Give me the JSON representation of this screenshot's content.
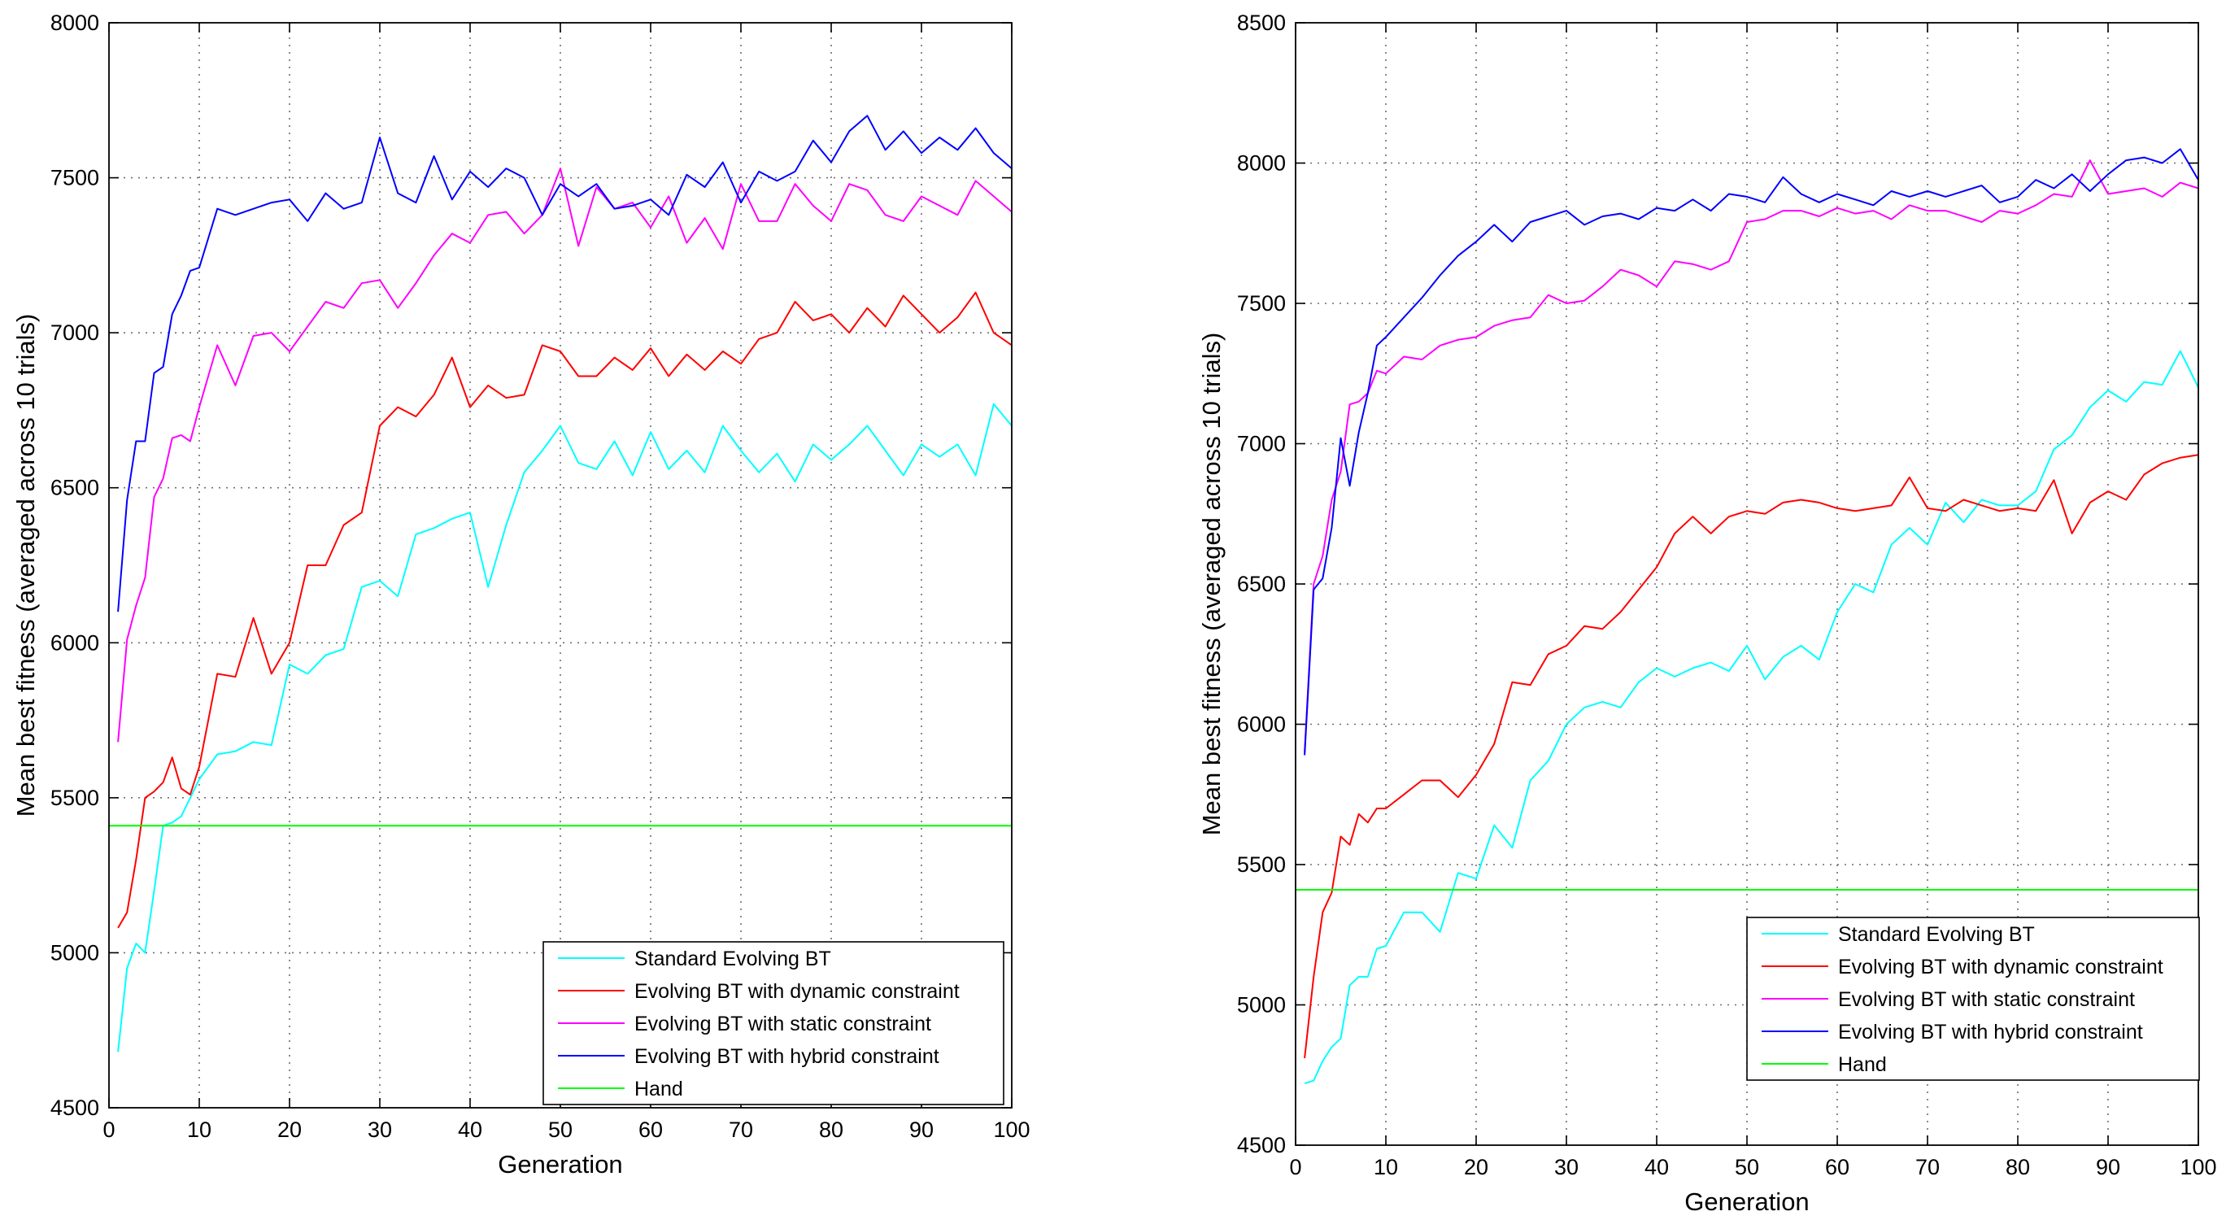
{
  "chart_data": [
    {
      "type": "line",
      "title": "",
      "xlabel": "Generation",
      "ylabel": "Mean best fitness (averaged across 10 trials)",
      "xlim": [
        0,
        100
      ],
      "ylim": [
        4500,
        8000
      ],
      "xticks": [
        0,
        10,
        20,
        30,
        40,
        50,
        60,
        70,
        80,
        90,
        100
      ],
      "yticks": [
        4500,
        5000,
        5500,
        6000,
        6500,
        7000,
        7500,
        8000
      ],
      "grid": true,
      "legend_position": "bottom-right",
      "series": [
        {
          "name": "Standard Evolving BT",
          "color": "#00ffff",
          "x": [
            1,
            2,
            3,
            4,
            5,
            6,
            7,
            8,
            9,
            10,
            12,
            14,
            16,
            18,
            20,
            22,
            24,
            26,
            28,
            30,
            32,
            34,
            36,
            38,
            40,
            42,
            44,
            46,
            48,
            50,
            52,
            54,
            56,
            58,
            60,
            62,
            64,
            66,
            68,
            70,
            72,
            74,
            76,
            78,
            80,
            82,
            84,
            86,
            88,
            90,
            92,
            94,
            96,
            98,
            100
          ],
          "y": [
            4680,
            4950,
            5030,
            5000,
            5200,
            5410,
            5420,
            5440,
            5500,
            5560,
            5640,
            5650,
            5680,
            5670,
            5930,
            5900,
            5960,
            5980,
            6180,
            6200,
            6150,
            6350,
            6370,
            6400,
            6420,
            6180,
            6380,
            6550,
            6620,
            6700,
            6580,
            6560,
            6650,
            6540,
            6680,
            6560,
            6620,
            6550,
            6700,
            6620,
            6550,
            6610,
            6520,
            6640,
            6590,
            6640,
            6700,
            6620,
            6540,
            6640,
            6600,
            6640,
            6540,
            6770,
            6700
          ]
        },
        {
          "name": "Evolving BT with dynamic constraint",
          "color": "#ff0000",
          "x": [
            1,
            2,
            3,
            4,
            5,
            6,
            7,
            8,
            9,
            10,
            12,
            14,
            16,
            18,
            20,
            22,
            24,
            26,
            28,
            30,
            32,
            34,
            36,
            38,
            40,
            42,
            44,
            46,
            48,
            50,
            52,
            54,
            56,
            58,
            60,
            62,
            64,
            66,
            68,
            70,
            72,
            74,
            76,
            78,
            80,
            82,
            84,
            86,
            88,
            90,
            92,
            94,
            96,
            98,
            100
          ],
          "y": [
            5080,
            5130,
            5300,
            5500,
            5520,
            5550,
            5630,
            5530,
            5510,
            5600,
            5900,
            5890,
            6080,
            5900,
            6000,
            6250,
            6250,
            6380,
            6420,
            6700,
            6760,
            6730,
            6800,
            6920,
            6760,
            6830,
            6790,
            6800,
            6960,
            6940,
            6860,
            6860,
            6920,
            6880,
            6950,
            6860,
            6930,
            6880,
            6940,
            6900,
            6980,
            7000,
            7100,
            7040,
            7060,
            7000,
            7080,
            7020,
            7120,
            7060,
            7000,
            7050,
            7130,
            7000,
            6960
          ]
        },
        {
          "name": "Evolving BT with static constraint",
          "color": "#ff00ff",
          "x": [
            1,
            2,
            3,
            4,
            5,
            6,
            7,
            8,
            9,
            10,
            12,
            14,
            16,
            18,
            20,
            22,
            24,
            26,
            28,
            30,
            32,
            34,
            36,
            38,
            40,
            42,
            44,
            46,
            48,
            50,
            52,
            54,
            56,
            58,
            60,
            62,
            64,
            66,
            68,
            70,
            72,
            74,
            76,
            78,
            80,
            82,
            84,
            86,
            88,
            90,
            92,
            94,
            96,
            98,
            100
          ],
          "y": [
            5680,
            6010,
            6120,
            6210,
            6470,
            6530,
            6660,
            6670,
            6650,
            6760,
            6960,
            6830,
            6990,
            7000,
            6940,
            7020,
            7100,
            7080,
            7160,
            7170,
            7080,
            7160,
            7250,
            7320,
            7290,
            7380,
            7390,
            7320,
            7380,
            7530,
            7280,
            7470,
            7400,
            7420,
            7340,
            7440,
            7290,
            7370,
            7270,
            7480,
            7360,
            7360,
            7480,
            7410,
            7360,
            7480,
            7460,
            7380,
            7360,
            7440,
            7410,
            7380,
            7490,
            7440,
            7390
          ]
        },
        {
          "name": "Evolving BT with hybrid constraint",
          "color": "#0000ff",
          "x": [
            1,
            2,
            3,
            4,
            5,
            6,
            7,
            8,
            9,
            10,
            12,
            14,
            16,
            18,
            20,
            22,
            24,
            26,
            28,
            30,
            32,
            34,
            36,
            38,
            40,
            42,
            44,
            46,
            48,
            50,
            52,
            54,
            56,
            58,
            60,
            62,
            64,
            66,
            68,
            70,
            72,
            74,
            76,
            78,
            80,
            82,
            84,
            86,
            88,
            90,
            92,
            94,
            96,
            98,
            100
          ],
          "y": [
            6100,
            6460,
            6650,
            6650,
            6870,
            6890,
            7060,
            7120,
            7200,
            7210,
            7400,
            7380,
            7400,
            7420,
            7430,
            7360,
            7450,
            7400,
            7420,
            7630,
            7450,
            7420,
            7570,
            7430,
            7520,
            7470,
            7530,
            7500,
            7380,
            7480,
            7440,
            7480,
            7400,
            7410,
            7430,
            7380,
            7510,
            7470,
            7550,
            7420,
            7520,
            7490,
            7520,
            7620,
            7550,
            7650,
            7700,
            7590,
            7650,
            7580,
            7630,
            7590,
            7660,
            7580,
            7530
          ]
        },
        {
          "name": "Hand",
          "color": "#00ff00",
          "x": [
            0,
            100
          ],
          "y": [
            5410,
            5410
          ]
        }
      ]
    },
    {
      "type": "line",
      "title": "",
      "xlabel": "Generation",
      "ylabel": "Mean best fitness (averaged across 10 trials)",
      "xlim": [
        0,
        100
      ],
      "ylim": [
        4500,
        8500
      ],
      "xticks": [
        0,
        10,
        20,
        30,
        40,
        50,
        60,
        70,
        80,
        90,
        100
      ],
      "yticks": [
        4500,
        5000,
        5500,
        6000,
        6500,
        7000,
        7500,
        8000,
        8500
      ],
      "grid": true,
      "legend_position": "bottom-right",
      "series": [
        {
          "name": "Standard Evolving BT",
          "color": "#00ffff",
          "x": [
            1,
            2,
            3,
            4,
            5,
            6,
            7,
            8,
            9,
            10,
            12,
            14,
            16,
            18,
            20,
            22,
            24,
            26,
            28,
            30,
            32,
            34,
            36,
            38,
            40,
            42,
            44,
            46,
            48,
            50,
            52,
            54,
            56,
            58,
            60,
            62,
            64,
            66,
            68,
            70,
            72,
            74,
            76,
            78,
            80,
            82,
            84,
            86,
            88,
            90,
            92,
            94,
            96,
            98,
            100
          ],
          "y": [
            4720,
            4730,
            4800,
            4850,
            4880,
            5070,
            5100,
            5100,
            5200,
            5210,
            5330,
            5330,
            5260,
            5470,
            5450,
            5640,
            5560,
            5800,
            5870,
            6000,
            6060,
            6080,
            6060,
            6150,
            6200,
            6170,
            6200,
            6220,
            6190,
            6280,
            6160,
            6240,
            6280,
            6230,
            6400,
            6500,
            6470,
            6640,
            6700,
            6640,
            6790,
            6720,
            6800,
            6780,
            6780,
            6830,
            6980,
            7030,
            7130,
            7190,
            7150,
            7220,
            7210,
            7330,
            7200
          ]
        },
        {
          "name": "Evolving BT with dynamic constraint",
          "color": "#ff0000",
          "x": [
            1,
            2,
            3,
            4,
            5,
            6,
            7,
            8,
            9,
            10,
            12,
            14,
            16,
            18,
            20,
            22,
            24,
            26,
            28,
            30,
            32,
            34,
            36,
            38,
            40,
            42,
            44,
            46,
            48,
            50,
            52,
            54,
            56,
            58,
            60,
            62,
            64,
            66,
            68,
            70,
            72,
            74,
            76,
            78,
            80,
            82,
            84,
            86,
            88,
            90,
            92,
            94,
            96,
            98,
            100
          ],
          "y": [
            4810,
            5100,
            5330,
            5400,
            5600,
            5570,
            5680,
            5650,
            5700,
            5700,
            5750,
            5800,
            5800,
            5740,
            5820,
            5930,
            6150,
            6140,
            6250,
            6280,
            6350,
            6340,
            6400,
            6480,
            6560,
            6680,
            6740,
            6680,
            6740,
            6760,
            6750,
            6790,
            6800,
            6790,
            6770,
            6760,
            6770,
            6780,
            6880,
            6770,
            6760,
            6800,
            6780,
            6760,
            6770,
            6760,
            6870,
            6680,
            6790,
            6830,
            6800,
            6890,
            6930,
            6950,
            6960
          ]
        },
        {
          "name": "Evolving BT with static constraint",
          "color": "#ff00ff",
          "x": [
            1,
            2,
            3,
            4,
            5,
            6,
            7,
            8,
            9,
            10,
            12,
            14,
            16,
            18,
            20,
            22,
            24,
            26,
            28,
            30,
            32,
            34,
            36,
            38,
            40,
            42,
            44,
            46,
            48,
            50,
            52,
            54,
            56,
            58,
            60,
            62,
            64,
            66,
            68,
            70,
            72,
            74,
            76,
            78,
            80,
            82,
            84,
            86,
            88,
            90,
            92,
            94,
            96,
            98,
            100
          ],
          "y": [
            5900,
            6500,
            6600,
            6800,
            6900,
            7140,
            7150,
            7180,
            7260,
            7250,
            7310,
            7300,
            7350,
            7370,
            7380,
            7420,
            7440,
            7450,
            7530,
            7500,
            7510,
            7560,
            7620,
            7600,
            7560,
            7650,
            7640,
            7620,
            7650,
            7790,
            7800,
            7830,
            7830,
            7810,
            7840,
            7820,
            7830,
            7800,
            7850,
            7830,
            7830,
            7810,
            7790,
            7830,
            7820,
            7850,
            7890,
            7880,
            8010,
            7890,
            7900,
            7910,
            7880,
            7930,
            7910
          ]
        },
        {
          "name": "Evolving BT with hybrid constraint",
          "color": "#0000ff",
          "x": [
            1,
            2,
            3,
            4,
            5,
            6,
            7,
            8,
            9,
            10,
            12,
            14,
            16,
            18,
            20,
            22,
            24,
            26,
            28,
            30,
            32,
            34,
            36,
            38,
            40,
            42,
            44,
            46,
            48,
            50,
            52,
            54,
            56,
            58,
            60,
            62,
            64,
            66,
            68,
            70,
            72,
            74,
            76,
            78,
            80,
            82,
            84,
            86,
            88,
            90,
            92,
            94,
            96,
            98,
            100
          ],
          "y": [
            5890,
            6480,
            6520,
            6700,
            7020,
            6850,
            7040,
            7180,
            7350,
            7380,
            7450,
            7520,
            7600,
            7670,
            7720,
            7780,
            7720,
            7790,
            7810,
            7830,
            7780,
            7810,
            7820,
            7800,
            7840,
            7830,
            7870,
            7830,
            7890,
            7880,
            7860,
            7950,
            7890,
            7860,
            7890,
            7870,
            7850,
            7900,
            7880,
            7900,
            7880,
            7900,
            7920,
            7860,
            7880,
            7940,
            7910,
            7960,
            7900,
            7960,
            8010,
            8020,
            8000,
            8050,
            7940
          ]
        },
        {
          "name": "Hand",
          "color": "#00ff00",
          "x": [
            0,
            100
          ],
          "y": [
            5410,
            5410
          ]
        }
      ]
    }
  ]
}
